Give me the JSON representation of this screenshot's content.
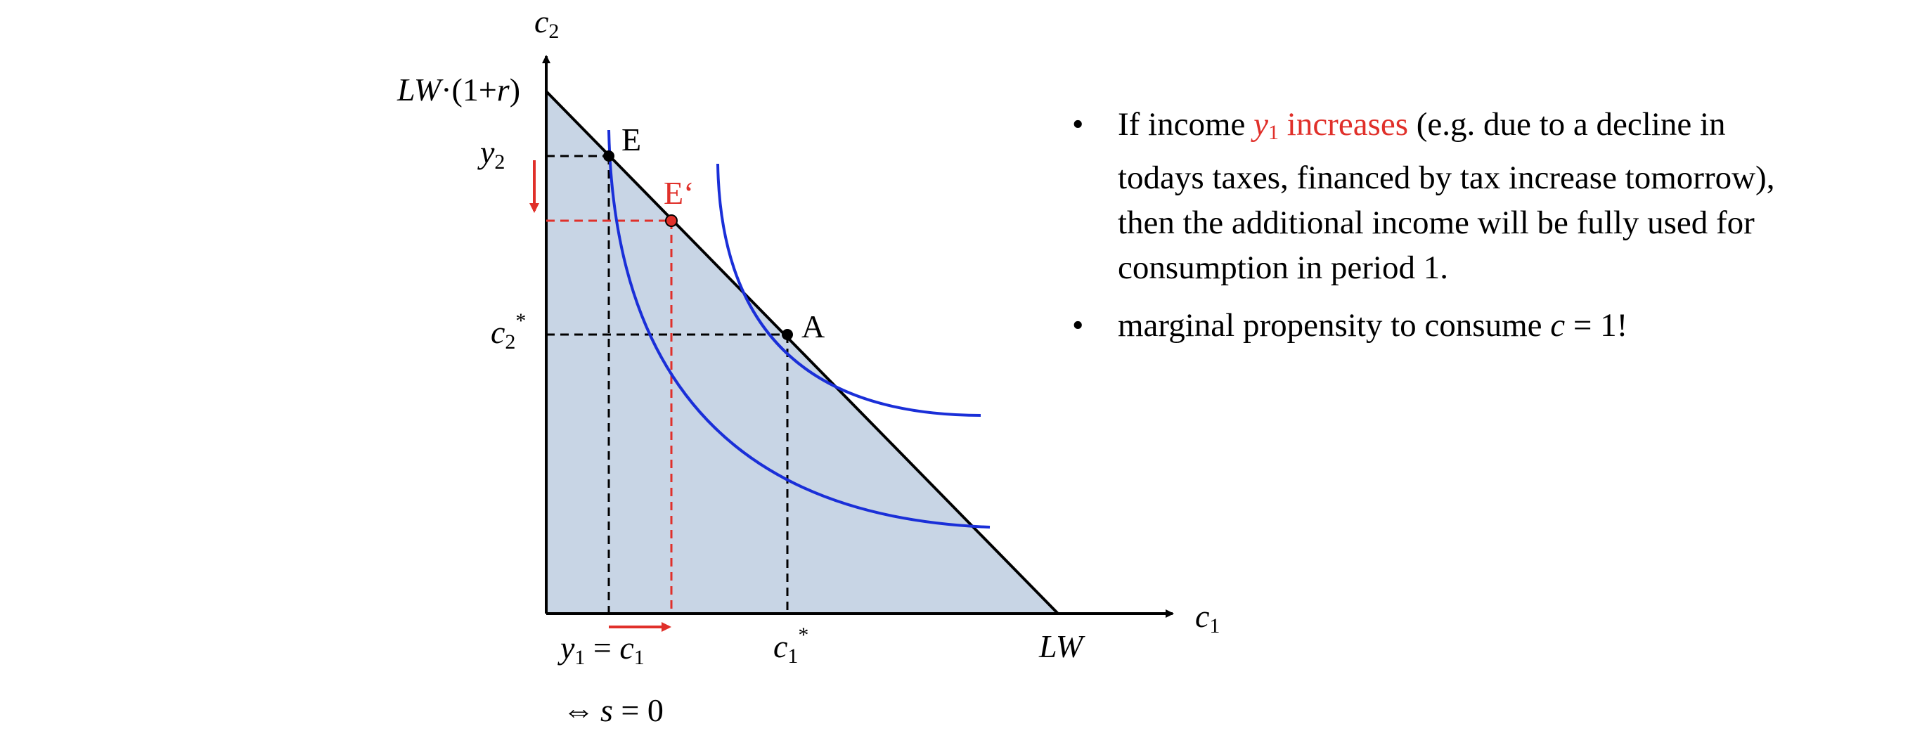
{
  "diagram": {
    "axes": {
      "y_label": "c",
      "y_sub": "2",
      "x_label": "c",
      "x_sub": "1"
    },
    "y_ticks": {
      "top": {
        "main": "LW",
        "dot": "·",
        "open": "(1+",
        "r": "r",
        "close": ")"
      },
      "y2": {
        "main": "y",
        "sub": "2"
      },
      "c2star": {
        "main": "c",
        "sub": "2",
        "sup": "*"
      }
    },
    "x_ticks": {
      "y1": {
        "main": "y",
        "sub": "1",
        "eq": " = ",
        "c": "c",
        "c_sub": "1"
      },
      "c1star": {
        "main": "c",
        "sub": "1",
        "sup": "*"
      },
      "lw": "LW"
    },
    "points": {
      "E": "E",
      "E_prime": "E‘",
      "A": "A"
    },
    "savings": {
      "iff": "⇔",
      "s": "s",
      "rest": " = 0"
    },
    "colors": {
      "fill": "#c8d5e5",
      "curve": "#1a2fd8",
      "accent": "#e0302a",
      "line": "#000000"
    }
  },
  "text": {
    "bullet_symbol": "•",
    "bullet1": {
      "pre": "If income ",
      "y": "y",
      "sub": "1",
      "red_rest": " increases",
      "post": " (e.g. due to a decline in todays taxes, financed by tax increase tomorrow), then the additional income will be fully used for consumption in period 1."
    },
    "bullet2": {
      "pre": "marginal propensity to consume ",
      "c": "c",
      "post": " = 1!"
    }
  }
}
